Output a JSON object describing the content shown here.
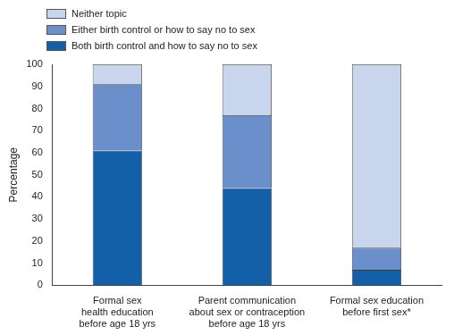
{
  "chart_data": {
    "type": "bar",
    "stacked": true,
    "grid": false,
    "legend": "top-left",
    "y_label": "Percentage",
    "categories": [
      [
        "Formal sex",
        "health education",
        "before age 18 yrs"
      ],
      [
        "Parent communication",
        "about sex or contraception",
        "before age 18 yrs"
      ],
      [
        "Formal sex education",
        "before first sex*"
      ]
    ],
    "series": [
      {
        "name": "Both birth control and how to say no to sex",
        "color": "#1460a8",
        "values": [
          61,
          44,
          7
        ]
      },
      {
        "name": "Either birth control or how to say no to sex",
        "color": "#6b8fcb",
        "values": [
          30,
          33,
          10
        ]
      },
      {
        "name": "Neither topic",
        "color": "#c8d5ec",
        "values": [
          9,
          23,
          83
        ]
      }
    ],
    "ylim": [
      0,
      100
    ],
    "yticks": [
      0,
      10,
      20,
      30,
      40,
      50,
      60,
      70,
      80,
      90,
      100
    ]
  }
}
